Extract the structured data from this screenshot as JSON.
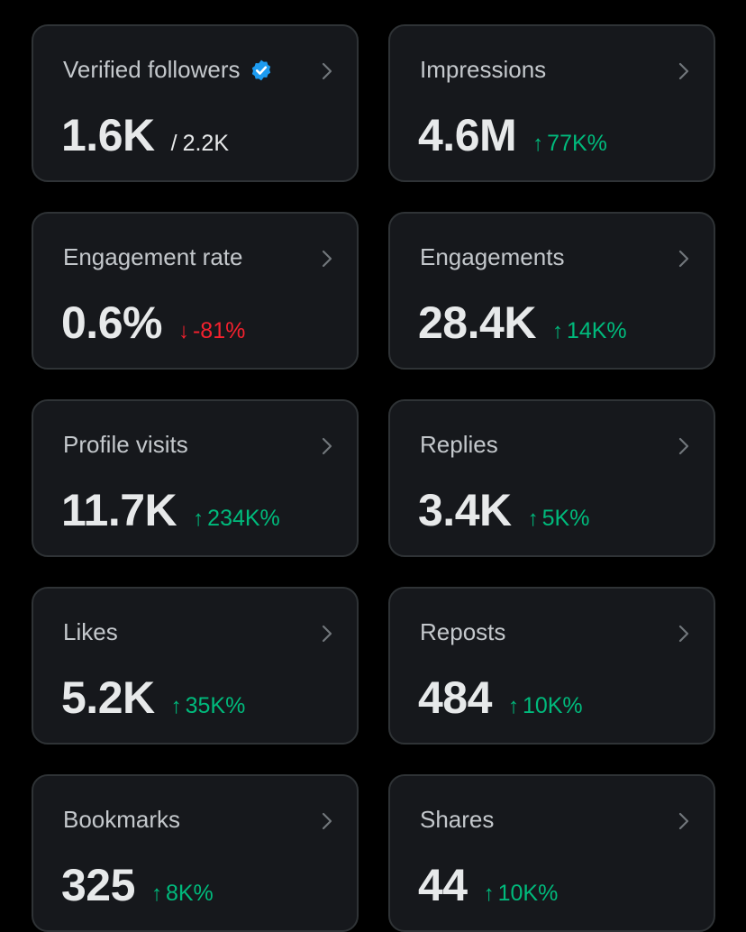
{
  "colors": {
    "background": "#000000",
    "card_background": "#16181c",
    "card_border": "#2f3336",
    "positive": "#00ba7c",
    "negative": "#f4212e",
    "verified_badge": "#1d9bf0"
  },
  "cards": [
    {
      "label": "Verified followers",
      "value": "1.6K",
      "sub_prefix": "/",
      "sub": "2.2K",
      "icon": "verified-badge-icon"
    },
    {
      "label": "Impressions",
      "value": "4.6M",
      "delta": "77K%",
      "direction": "up",
      "arrow": "↑"
    },
    {
      "label": "Engagement rate",
      "value": "0.6%",
      "delta": "-81%",
      "direction": "down",
      "arrow": "↓"
    },
    {
      "label": "Engagements",
      "value": "28.4K",
      "delta": "14K%",
      "direction": "up",
      "arrow": "↑"
    },
    {
      "label": "Profile visits",
      "value": "11.7K",
      "delta": "234K%",
      "direction": "up",
      "arrow": "↑"
    },
    {
      "label": "Replies",
      "value": "3.4K",
      "delta": "5K%",
      "direction": "up",
      "arrow": "↑"
    },
    {
      "label": "Likes",
      "value": "5.2K",
      "delta": "35K%",
      "direction": "up",
      "arrow": "↑"
    },
    {
      "label": "Reposts",
      "value": "484",
      "delta": "10K%",
      "direction": "up",
      "arrow": "↑"
    },
    {
      "label": "Bookmarks",
      "value": "325",
      "delta": "8K%",
      "direction": "up",
      "arrow": "↑"
    },
    {
      "label": "Shares",
      "value": "44",
      "delta": "10K%",
      "direction": "up",
      "arrow": "↑"
    }
  ]
}
